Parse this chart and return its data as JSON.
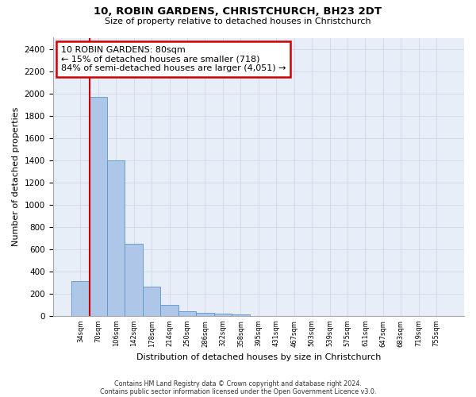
{
  "title_line1": "10, ROBIN GARDENS, CHRISTCHURCH, BH23 2DT",
  "title_line2": "Size of property relative to detached houses in Christchurch",
  "xlabel": "Distribution of detached houses by size in Christchurch",
  "ylabel": "Number of detached properties",
  "footnote1": "Contains HM Land Registry data © Crown copyright and database right 2024.",
  "footnote2": "Contains public sector information licensed under the Open Government Licence v3.0.",
  "categories": [
    "34sqm",
    "70sqm",
    "106sqm",
    "142sqm",
    "178sqm",
    "214sqm",
    "250sqm",
    "286sqm",
    "322sqm",
    "358sqm",
    "395sqm",
    "431sqm",
    "467sqm",
    "503sqm",
    "539sqm",
    "575sqm",
    "611sqm",
    "647sqm",
    "683sqm",
    "719sqm",
    "755sqm"
  ],
  "bar_values": [
    310,
    1970,
    1400,
    650,
    265,
    95,
    45,
    30,
    20,
    10,
    0,
    0,
    0,
    0,
    0,
    0,
    0,
    0,
    0,
    0,
    0
  ],
  "bar_color": "#aec6e8",
  "bar_edge_color": "#5a96c8",
  "annotation_text": "10 ROBIN GARDENS: 80sqm\n← 15% of detached houses are smaller (718)\n84% of semi-detached houses are larger (4,051) →",
  "annotation_box_color": "#ffffff",
  "annotation_box_edge_color": "#cc0000",
  "vline_color": "#cc0000",
  "ylim": [
    0,
    2500
  ],
  "yticks": [
    0,
    200,
    400,
    600,
    800,
    1000,
    1200,
    1400,
    1600,
    1800,
    2000,
    2200,
    2400
  ],
  "grid_color": "#c8d4e8",
  "bg_color": "#e8eef8"
}
